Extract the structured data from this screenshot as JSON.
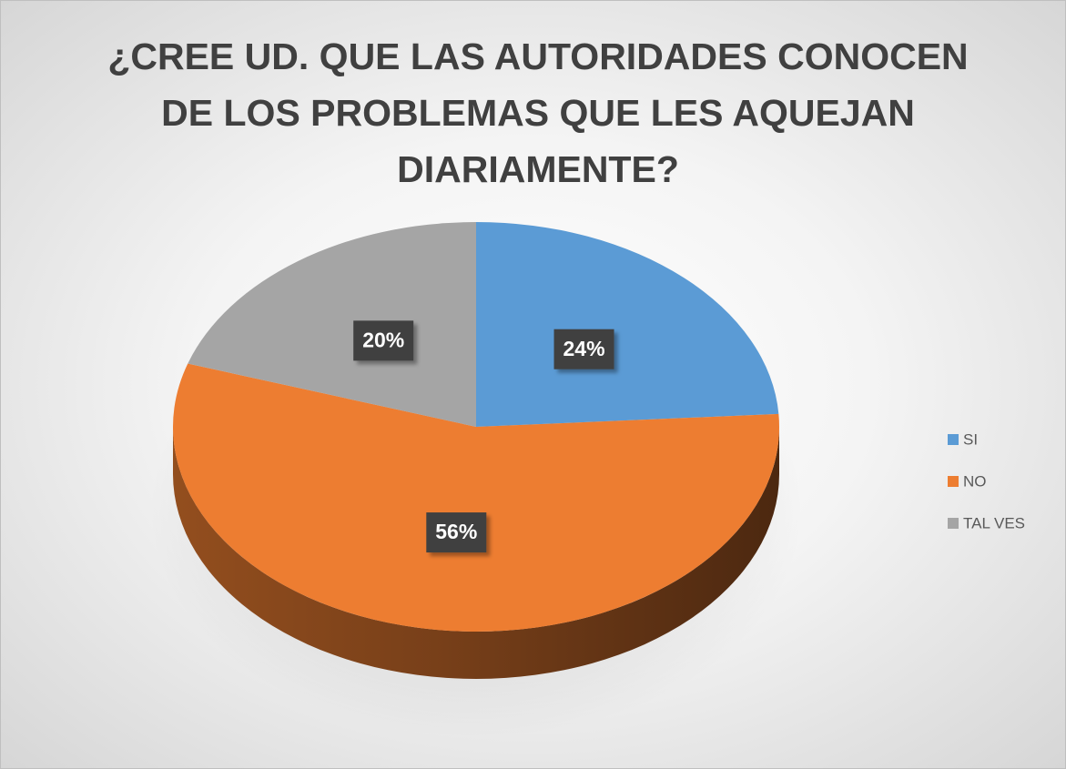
{
  "chart_data": {
    "type": "pie",
    "title": "¿CREE UD. QUE LAS AUTORIDADES CONOCEN DE LOS PROBLEMAS QUE LES AQUEJAN DIARIAMENTE?",
    "categories": [
      "SI",
      "NO",
      "TAL VES"
    ],
    "values": [
      24,
      56,
      20
    ],
    "value_labels": [
      "24%",
      "56%",
      "20%"
    ],
    "colors": [
      "#5b9bd5",
      "#ed7d31",
      "#a5a5a5"
    ],
    "legend": "right"
  }
}
